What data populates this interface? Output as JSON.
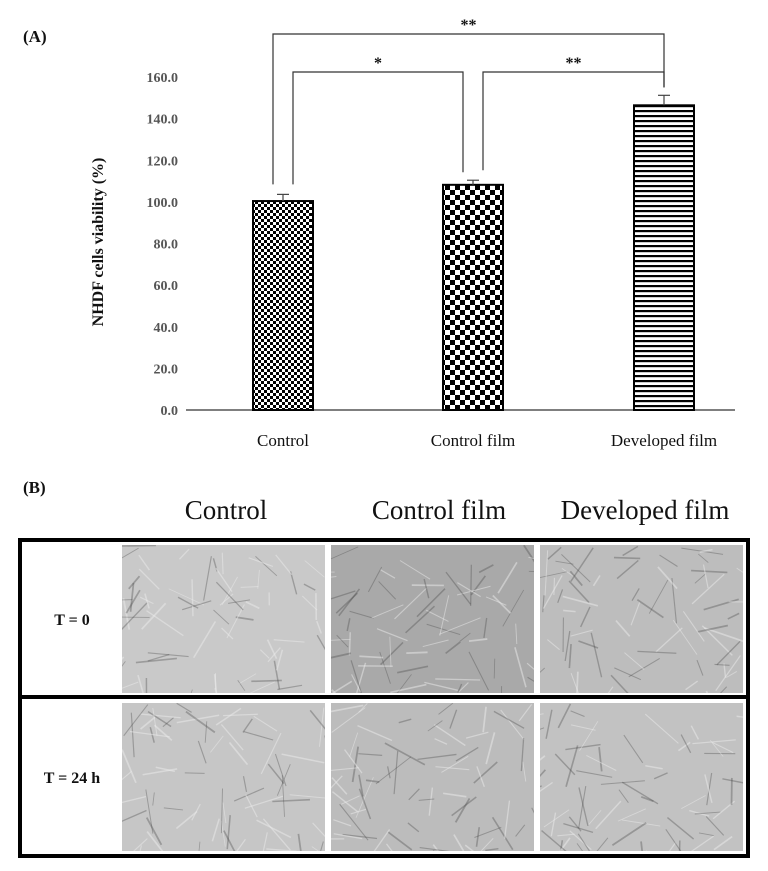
{
  "panels": {
    "a_label": "(A)",
    "b_label": "(B)"
  },
  "chart_data": {
    "type": "bar",
    "ylabel": "NHDF cells viability (%)",
    "ylim": [
      0,
      160
    ],
    "yticks": [
      "0.0",
      "20.0",
      "40.0",
      "60.0",
      "80.0",
      "100.0",
      "120.0",
      "140.0",
      "160.0"
    ],
    "categories": [
      "Control",
      "Control film",
      "Developed film"
    ],
    "values": [
      100.4,
      108.2,
      146.4
    ],
    "errors": [
      3.2,
      2.2,
      4.8
    ],
    "patterns": [
      "fine-checker",
      "coarse-checker",
      "horizontal-lines"
    ],
    "significance": [
      {
        "from": 0,
        "to": 1,
        "label": "*"
      },
      {
        "from": 1,
        "to": 2,
        "label": "**"
      },
      {
        "from": 0,
        "to": 2,
        "label": "**"
      }
    ]
  },
  "micrographs": {
    "columns": [
      "Control",
      "Control film",
      "Developed film"
    ],
    "rows": [
      {
        "label": "T = 0",
        "tones": [
          "#c9c9c9",
          "#a9a9a9",
          "#bdbdbd"
        ]
      },
      {
        "label": "T = 24 h",
        "tones": [
          "#c6c6c6",
          "#bcbcbc",
          "#c2c2c2"
        ]
      }
    ]
  }
}
